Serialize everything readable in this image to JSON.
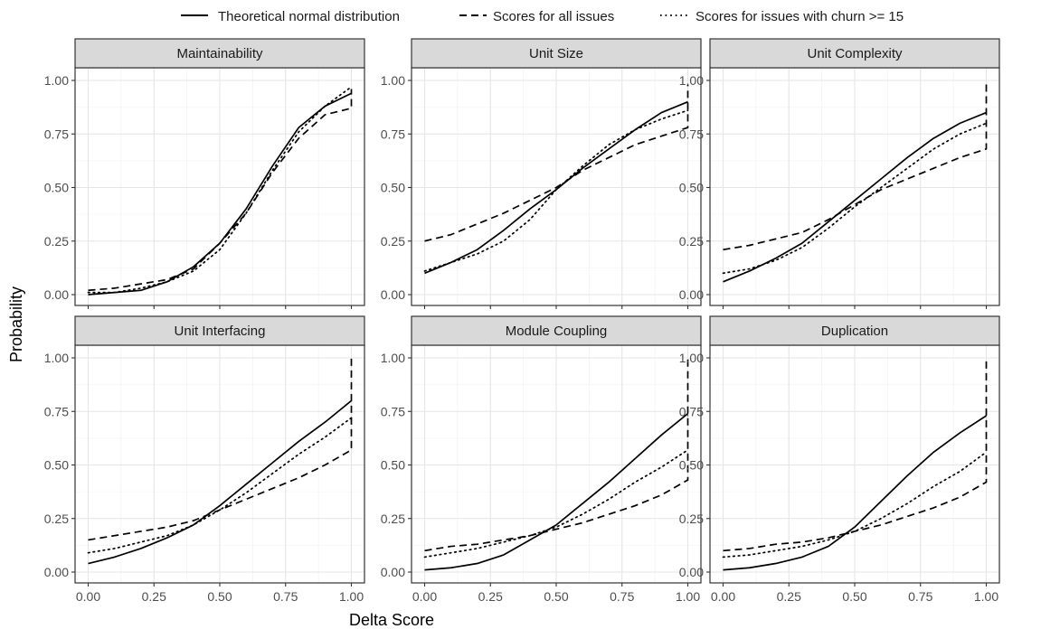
{
  "chart_data": {
    "type": "line",
    "xlabel": "Delta Score",
    "ylabel": "Probability",
    "xlim": [
      0,
      1
    ],
    "ylim": [
      0,
      1
    ],
    "xticks": [
      "0.00",
      "0.25",
      "0.50",
      "0.75",
      "1.00"
    ],
    "yticks": [
      "0.00",
      "0.25",
      "0.50",
      "0.75",
      "1.00"
    ],
    "grid": true,
    "legend_position": "top",
    "legend": [
      {
        "name": "Theoretical normal distribution",
        "style": "solid"
      },
      {
        "name": "Scores for all issues",
        "style": "dashed"
      },
      {
        "name": "Scores for issues with churn >= 15",
        "style": "dotted"
      }
    ],
    "x": [
      0,
      0.1,
      0.2,
      0.3,
      0.4,
      0.5,
      0.6,
      0.7,
      0.8,
      0.9,
      1.0
    ],
    "panels": [
      {
        "title": "Maintainability",
        "series": [
          {
            "name": "Theoretical normal distribution",
            "values": [
              0.0,
              0.01,
              0.02,
              0.06,
              0.13,
              0.24,
              0.4,
              0.6,
              0.78,
              0.88,
              0.94
            ]
          },
          {
            "name": "Scores for all issues",
            "values": [
              0.02,
              0.03,
              0.05,
              0.07,
              0.12,
              0.24,
              0.38,
              0.57,
              0.73,
              0.84,
              0.87
            ],
            "end": 0.96
          },
          {
            "name": "Scores for issues with churn >= 15",
            "values": [
              0.01,
              0.01,
              0.03,
              0.06,
              0.11,
              0.21,
              0.38,
              0.58,
              0.76,
              0.88,
              0.97
            ]
          }
        ]
      },
      {
        "title": "Unit Size",
        "series": [
          {
            "name": "Theoretical normal distribution",
            "values": [
              0.1,
              0.15,
              0.21,
              0.3,
              0.4,
              0.49,
              0.59,
              0.68,
              0.77,
              0.85,
              0.9
            ]
          },
          {
            "name": "Scores for all issues",
            "values": [
              0.25,
              0.28,
              0.33,
              0.38,
              0.44,
              0.5,
              0.58,
              0.64,
              0.7,
              0.74,
              0.78
            ],
            "end": 0.98
          },
          {
            "name": "Scores for issues with churn >= 15",
            "values": [
              0.11,
              0.15,
              0.19,
              0.25,
              0.35,
              0.49,
              0.6,
              0.7,
              0.77,
              0.82,
              0.86
            ]
          }
        ]
      },
      {
        "title": "Unit Complexity",
        "series": [
          {
            "name": "Theoretical normal distribution",
            "values": [
              0.06,
              0.11,
              0.17,
              0.24,
              0.34,
              0.44,
              0.54,
              0.64,
              0.73,
              0.8,
              0.85
            ]
          },
          {
            "name": "Scores for all issues",
            "values": [
              0.21,
              0.23,
              0.26,
              0.29,
              0.35,
              0.42,
              0.49,
              0.54,
              0.59,
              0.64,
              0.68
            ],
            "end": 1.0
          },
          {
            "name": "Scores for issues with churn >= 15",
            "values": [
              0.1,
              0.12,
              0.16,
              0.22,
              0.31,
              0.41,
              0.5,
              0.59,
              0.68,
              0.75,
              0.8
            ]
          }
        ]
      },
      {
        "title": "Unit Interfacing",
        "series": [
          {
            "name": "Theoretical normal distribution",
            "values": [
              0.04,
              0.07,
              0.11,
              0.16,
              0.22,
              0.31,
              0.41,
              0.51,
              0.61,
              0.7,
              0.8
            ]
          },
          {
            "name": "Scores for all issues",
            "values": [
              0.15,
              0.17,
              0.19,
              0.21,
              0.24,
              0.29,
              0.34,
              0.39,
              0.44,
              0.5,
              0.57
            ],
            "end": 1.0
          },
          {
            "name": "Scores for issues with churn >= 15",
            "values": [
              0.09,
              0.11,
              0.14,
              0.17,
              0.22,
              0.29,
              0.37,
              0.46,
              0.55,
              0.63,
              0.72
            ]
          }
        ]
      },
      {
        "title": "Module Coupling",
        "series": [
          {
            "name": "Theoretical normal distribution",
            "values": [
              0.01,
              0.02,
              0.04,
              0.08,
              0.15,
              0.22,
              0.32,
              0.42,
              0.53,
              0.64,
              0.74
            ]
          },
          {
            "name": "Scores for all issues",
            "values": [
              0.1,
              0.12,
              0.13,
              0.15,
              0.17,
              0.2,
              0.23,
              0.27,
              0.31,
              0.36,
              0.43
            ],
            "end": 1.0
          },
          {
            "name": "Scores for issues with churn >= 15",
            "values": [
              0.07,
              0.09,
              0.11,
              0.14,
              0.17,
              0.21,
              0.27,
              0.34,
              0.42,
              0.49,
              0.57
            ]
          }
        ]
      },
      {
        "title": "Duplication",
        "series": [
          {
            "name": "Theoretical normal distribution",
            "values": [
              0.01,
              0.02,
              0.04,
              0.07,
              0.12,
              0.21,
              0.33,
              0.45,
              0.56,
              0.65,
              0.73
            ]
          },
          {
            "name": "Scores for all issues",
            "values": [
              0.1,
              0.11,
              0.13,
              0.14,
              0.16,
              0.19,
              0.22,
              0.26,
              0.3,
              0.35,
              0.42
            ],
            "end": 1.0
          },
          {
            "name": "Scores for issues with churn >= 15",
            "values": [
              0.07,
              0.08,
              0.1,
              0.12,
              0.15,
              0.19,
              0.25,
              0.32,
              0.4,
              0.47,
              0.56
            ]
          }
        ]
      }
    ]
  }
}
